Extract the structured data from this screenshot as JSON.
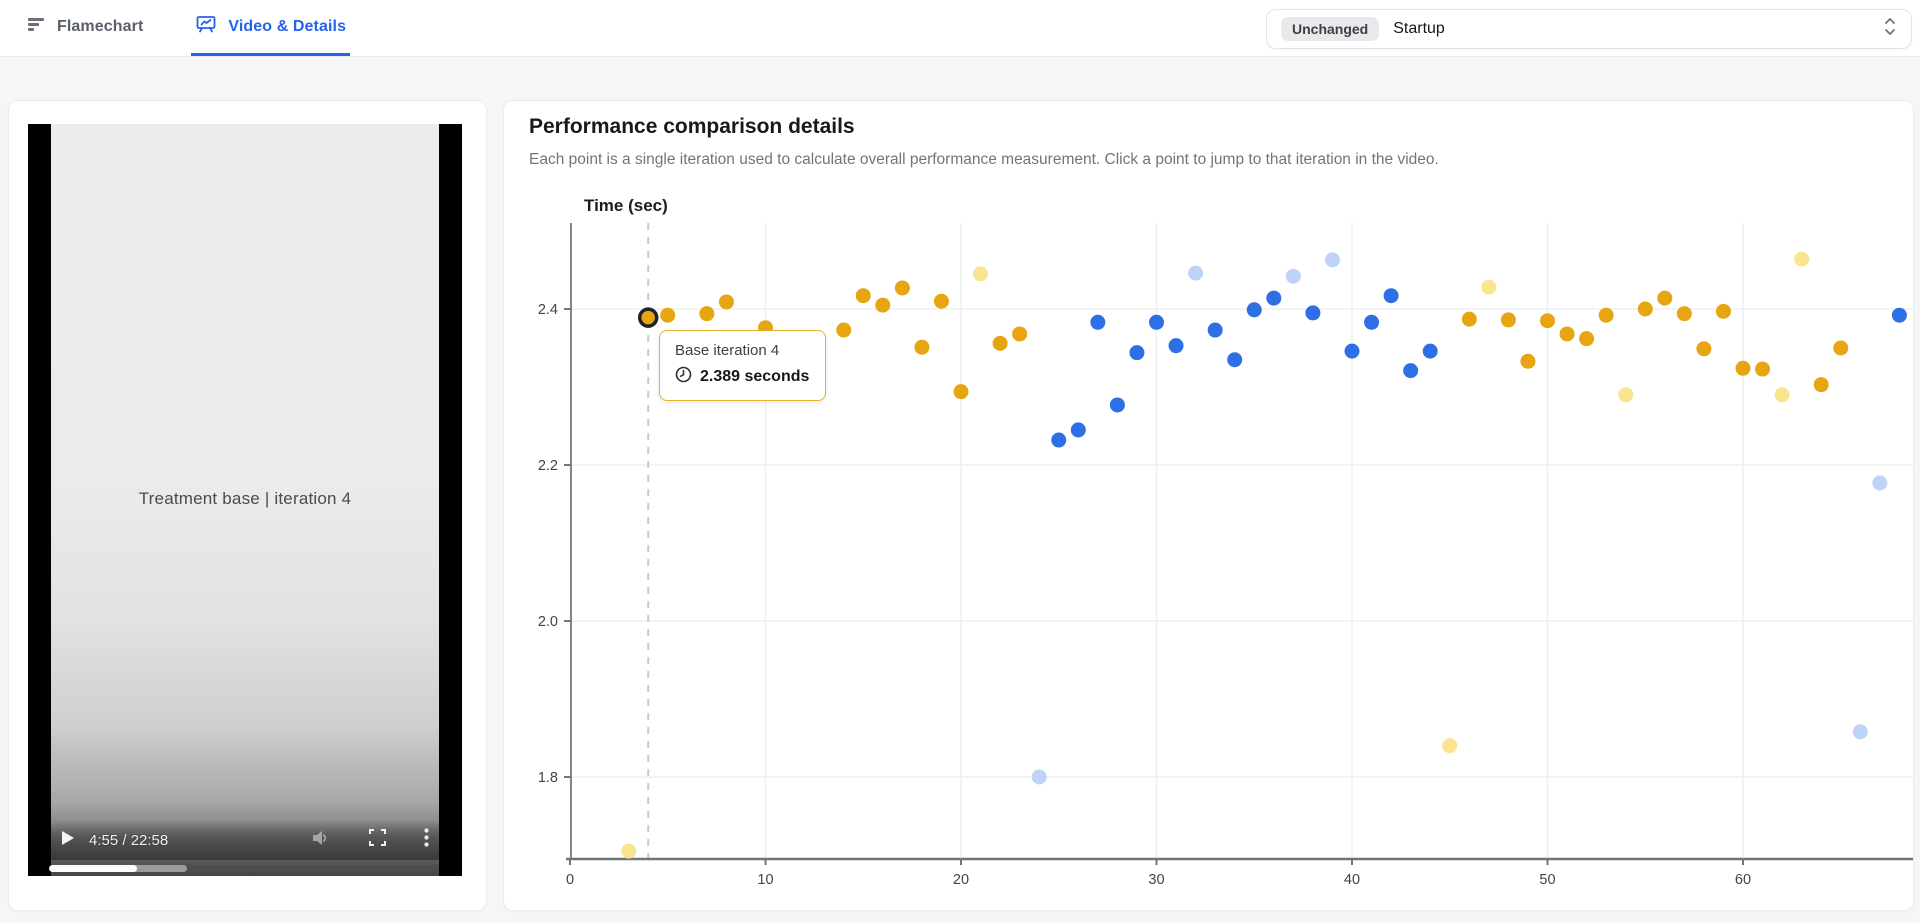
{
  "header": {
    "tabs": [
      {
        "label": "Flamechart",
        "active": false
      },
      {
        "label": "Video & Details",
        "active": true
      }
    ],
    "metric_select": {
      "badge": "Unchanged",
      "value": "Startup"
    }
  },
  "video": {
    "overlay_title": "Treatment base | iteration 4",
    "controls": {
      "time": "4:55 / 22:58"
    },
    "progress": {
      "played_pct": 22.5,
      "buffered_pct": 35.5
    }
  },
  "panel": {
    "title": "Performance comparison details",
    "subtitle": "Each point is a single iteration used to calculate overall performance measurement. Click a point to jump to that iteration in the video."
  },
  "tooltip": {
    "title": "Base iteration 4",
    "value": "2.389 seconds"
  },
  "colors": {
    "accent_blue": "#2563EB",
    "base_gold": "#E7A512",
    "base_faded": "#FAE48E",
    "treatment_blue": "#2F6FE5",
    "treatment_faded": "#BED3F6",
    "tooltip_border": "#E5B22E"
  },
  "chart_data": {
    "type": "scatter",
    "title": "Time (sec)",
    "xlabel": "",
    "ylabel": "Time (sec)",
    "xlim": [
      0,
      68.8
    ],
    "ylim": [
      1.695,
      2.506
    ],
    "x_ticks": [
      0,
      10,
      20,
      30,
      40,
      50,
      60
    ],
    "y_ticks": [
      1.8,
      2.0,
      2.2,
      2.4
    ],
    "grid": true,
    "legend": "none",
    "selected_point": {
      "series": "base",
      "x": 4,
      "y": 2.389
    },
    "series": [
      {
        "name": "base",
        "color": "#E7A512",
        "points": [
          [
            4,
            2.389
          ],
          [
            5,
            2.392
          ],
          [
            7,
            2.394
          ],
          [
            8,
            2.409
          ],
          [
            10,
            2.376
          ],
          [
            14,
            2.373
          ],
          [
            15,
            2.417
          ],
          [
            16,
            2.405
          ],
          [
            17,
            2.427
          ],
          [
            18,
            2.351
          ],
          [
            19,
            2.41
          ],
          [
            20,
            2.294
          ],
          [
            22,
            2.356
          ],
          [
            23,
            2.368
          ],
          [
            46,
            2.387
          ],
          [
            48,
            2.386
          ],
          [
            49,
            2.333
          ],
          [
            50,
            2.385
          ],
          [
            51,
            2.368
          ],
          [
            52,
            2.362
          ],
          [
            53,
            2.392
          ],
          [
            55,
            2.4
          ],
          [
            56,
            2.414
          ],
          [
            57,
            2.394
          ],
          [
            58,
            2.349
          ],
          [
            59,
            2.397
          ],
          [
            60,
            2.324
          ],
          [
            61,
            2.323
          ],
          [
            64,
            2.303
          ],
          [
            65,
            2.35
          ]
        ]
      },
      {
        "name": "base-faded",
        "color": "#FAE48E",
        "points": [
          [
            3,
            1.705
          ],
          [
            21,
            2.445
          ],
          [
            45,
            1.84
          ],
          [
            47,
            2.428
          ],
          [
            54,
            2.29
          ],
          [
            62,
            2.29
          ],
          [
            63,
            2.464
          ]
        ]
      },
      {
        "name": "treatment",
        "color": "#2F6FE5",
        "points": [
          [
            25,
            2.232
          ],
          [
            26,
            2.245
          ],
          [
            27,
            2.383
          ],
          [
            28,
            2.277
          ],
          [
            29,
            2.344
          ],
          [
            30,
            2.383
          ],
          [
            31,
            2.353
          ],
          [
            33,
            2.373
          ],
          [
            34,
            2.335
          ],
          [
            35,
            2.399
          ],
          [
            36,
            2.414
          ],
          [
            38,
            2.395
          ],
          [
            40,
            2.346
          ],
          [
            41,
            2.383
          ],
          [
            42,
            2.417
          ],
          [
            43,
            2.321
          ],
          [
            44,
            2.346
          ],
          [
            68,
            2.392
          ]
        ]
      },
      {
        "name": "treatment-faded",
        "color": "#BED3F6",
        "points": [
          [
            24,
            1.8
          ],
          [
            32,
            2.446
          ],
          [
            37,
            2.442
          ],
          [
            39,
            2.463
          ],
          [
            66,
            1.858
          ],
          [
            67,
            2.177
          ]
        ]
      }
    ]
  }
}
